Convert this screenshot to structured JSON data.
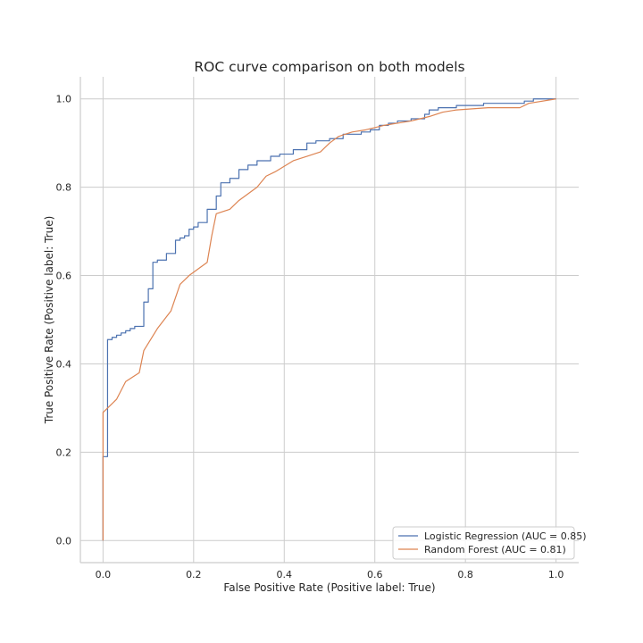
{
  "chart_data": {
    "type": "line",
    "title": "ROC curve comparison on both models",
    "xlabel": "False Positive Rate (Positive label: True)",
    "ylabel": "True Positive Rate (Positive label: True)",
    "xlim": [
      -0.05,
      1.05
    ],
    "ylim": [
      -0.05,
      1.05
    ],
    "xticks": [
      0.0,
      0.2,
      0.4,
      0.6,
      0.8,
      1.0
    ],
    "yticks": [
      0.0,
      0.2,
      0.4,
      0.6,
      0.8,
      1.0
    ],
    "xtick_labels": [
      "0.0",
      "0.2",
      "0.4",
      "0.6",
      "0.8",
      "1.0"
    ],
    "ytick_labels": [
      "0.0",
      "0.2",
      "0.4",
      "0.6",
      "0.8",
      "1.0"
    ],
    "grid": true,
    "legend_position": "bottom-right",
    "series": [
      {
        "name": "Logistic Regression (AUC = 0.85)",
        "color": "#4c72b0",
        "style": "step",
        "x": [
          0,
          0,
          0.01,
          0.01,
          0.02,
          0.03,
          0.04,
          0.05,
          0.06,
          0.07,
          0.09,
          0.1,
          0.11,
          0.12,
          0.14,
          0.16,
          0.17,
          0.18,
          0.19,
          0.2,
          0.21,
          0.23,
          0.25,
          0.26,
          0.28,
          0.3,
          0.32,
          0.34,
          0.37,
          0.39,
          0.42,
          0.45,
          0.47,
          0.5,
          0.53,
          0.57,
          0.59,
          0.61,
          0.63,
          0.65,
          0.68,
          0.71,
          0.72,
          0.74,
          0.78,
          0.84,
          0.93,
          0.95,
          1.0
        ],
        "y": [
          0,
          0.19,
          0.19,
          0.455,
          0.46,
          0.465,
          0.47,
          0.475,
          0.48,
          0.485,
          0.54,
          0.57,
          0.63,
          0.635,
          0.65,
          0.68,
          0.685,
          0.69,
          0.705,
          0.71,
          0.72,
          0.75,
          0.78,
          0.81,
          0.82,
          0.84,
          0.85,
          0.86,
          0.87,
          0.875,
          0.885,
          0.9,
          0.905,
          0.91,
          0.92,
          0.925,
          0.93,
          0.94,
          0.945,
          0.95,
          0.955,
          0.965,
          0.975,
          0.98,
          0.985,
          0.99,
          0.995,
          1.0,
          1.0
        ]
      },
      {
        "name": "Random Forest (AUC = 0.81)",
        "color": "#dd8452",
        "style": "line",
        "x": [
          0,
          0.0,
          0.01,
          0.03,
          0.05,
          0.08,
          0.09,
          0.12,
          0.15,
          0.17,
          0.19,
          0.23,
          0.24,
          0.25,
          0.28,
          0.3,
          0.34,
          0.36,
          0.38,
          0.42,
          0.45,
          0.48,
          0.5,
          0.52,
          0.55,
          0.58,
          0.62,
          0.68,
          0.72,
          0.75,
          0.78,
          0.85,
          0.92,
          0.94,
          1.0
        ],
        "y": [
          0,
          0.29,
          0.3,
          0.32,
          0.36,
          0.38,
          0.43,
          0.48,
          0.52,
          0.58,
          0.6,
          0.63,
          0.69,
          0.74,
          0.75,
          0.77,
          0.8,
          0.825,
          0.835,
          0.86,
          0.87,
          0.88,
          0.9,
          0.915,
          0.925,
          0.93,
          0.94,
          0.95,
          0.96,
          0.97,
          0.975,
          0.98,
          0.98,
          0.99,
          1.0
        ]
      }
    ]
  }
}
